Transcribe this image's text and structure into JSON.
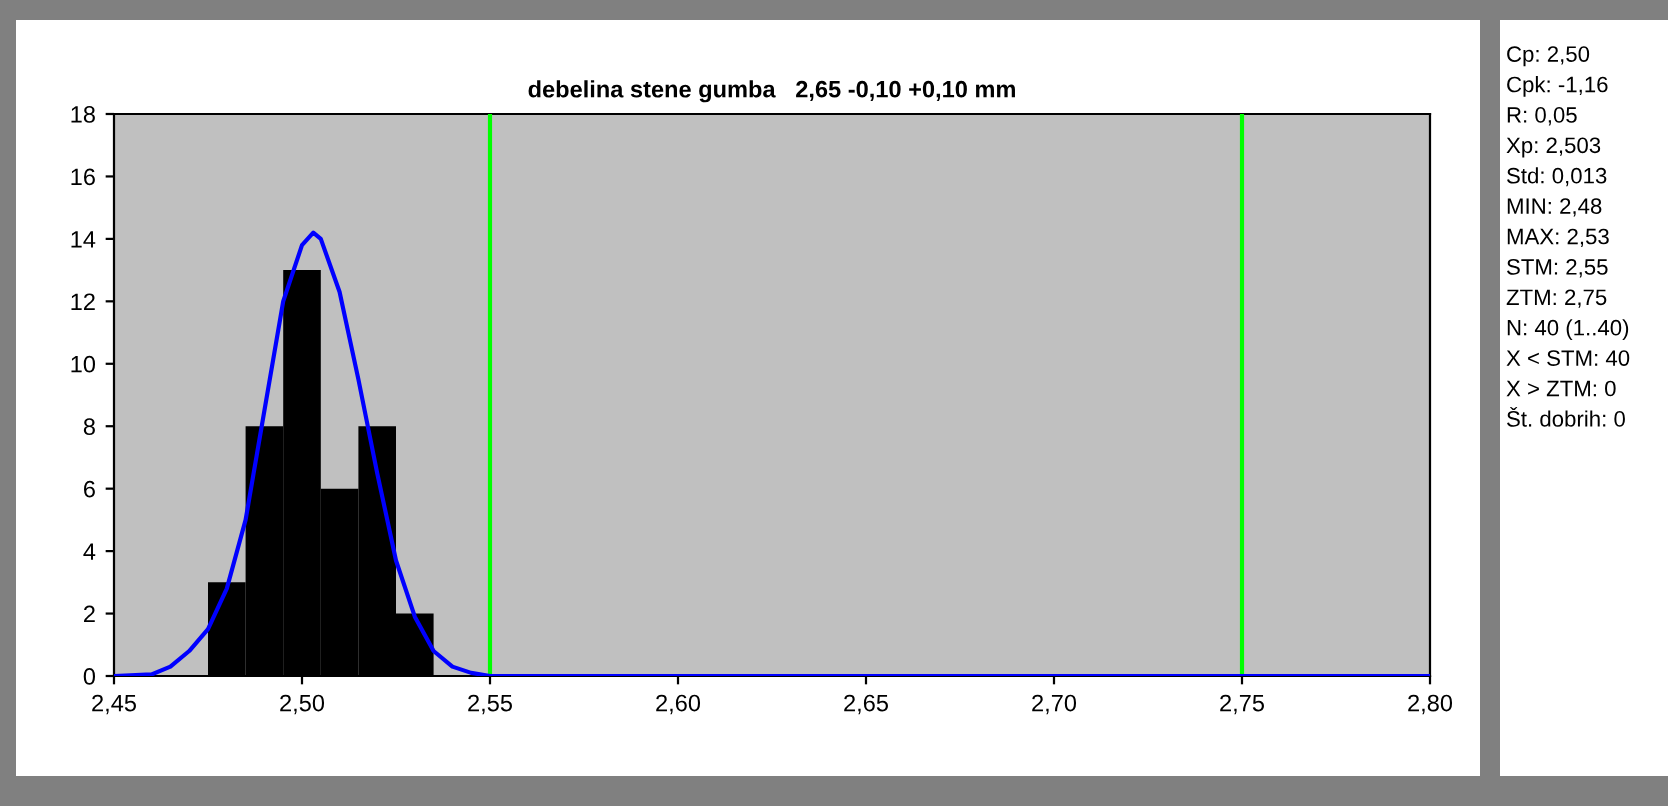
{
  "chart_data": {
    "type": "histogram",
    "title": "debelina stene gumba   2,65 -0,10 +0,10 mm",
    "bins": [
      2.475,
      2.485,
      2.495,
      2.505,
      2.515,
      2.525,
      2.535
    ],
    "values": [
      3,
      8,
      13,
      6,
      8,
      2
    ],
    "color": "#000000",
    "series": [
      {
        "type": "line",
        "color": "#0000ff",
        "x": [
          2.45,
          2.46,
          2.465,
          2.47,
          2.475,
          2.48,
          2.485,
          2.49,
          2.495,
          2.5,
          2.503,
          2.505,
          2.51,
          2.515,
          2.52,
          2.525,
          2.53,
          2.535,
          2.54,
          2.545,
          2.55,
          2.8
        ],
        "values": [
          0,
          0.05,
          0.3,
          0.8,
          1.5,
          2.8,
          5,
          8.5,
          12,
          13.8,
          14.2,
          14,
          12.3,
          9.5,
          6.5,
          3.7,
          1.9,
          0.8,
          0.3,
          0.1,
          0,
          0
        ]
      }
    ],
    "ref_lines": [
      {
        "axis": "x",
        "value": 2.55,
        "color": "#00ff00"
      },
      {
        "axis": "x",
        "value": 2.75,
        "color": "#00ff00"
      }
    ],
    "xlim": [
      2.45,
      2.8
    ],
    "xticks": [
      {
        "value": 2.45,
        "label": "2,45"
      },
      {
        "value": 2.5,
        "label": "2,50"
      },
      {
        "value": 2.55,
        "label": "2,55"
      },
      {
        "value": 2.6,
        "label": "2,60"
      },
      {
        "value": 2.65,
        "label": "2,65"
      },
      {
        "value": 2.7,
        "label": "2,70"
      },
      {
        "value": 2.75,
        "label": "2,75"
      },
      {
        "value": 2.8,
        "label": "2,80"
      }
    ],
    "ylim": [
      0,
      18
    ],
    "yticks": [
      0,
      2,
      4,
      6,
      8,
      10,
      12,
      14,
      16,
      18
    ],
    "grid": false,
    "legend": false,
    "annotations": [
      "Cp: 2,50",
      "Cpk: -1,16",
      "R: 0,05",
      "Xp: 2,503",
      "Std: 0,013",
      "MIN: 2,48",
      "MAX: 2,53",
      "STM: 2,55",
      "ZTM: 2,75",
      "N: 40 (1..40)",
      "X < STM: 40",
      "X > ZTM: 0",
      "Št. dobrih: 0"
    ]
  }
}
